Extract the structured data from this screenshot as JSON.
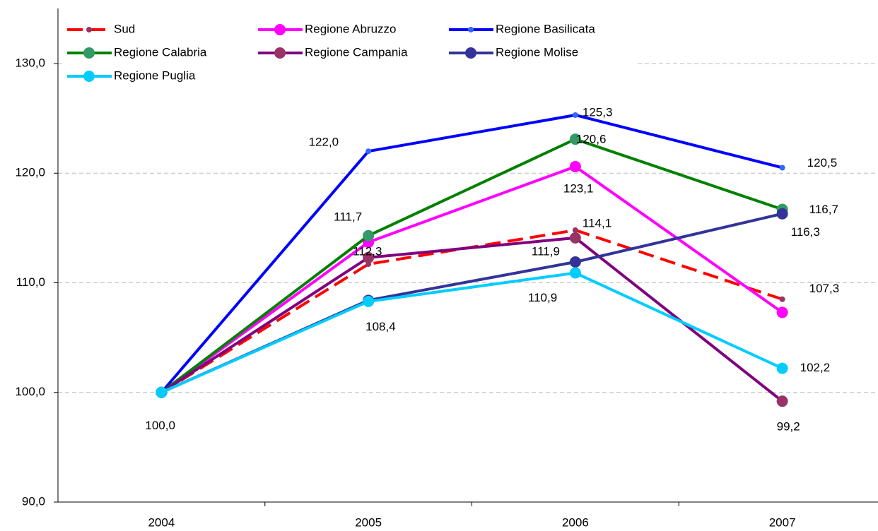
{
  "chart_data": {
    "type": "line",
    "categories": [
      "2004",
      "2005",
      "2006",
      "2007"
    ],
    "ylim": [
      90,
      130
    ],
    "yticks": [
      {
        "value": 90,
        "label": "90,0"
      },
      {
        "value": 100,
        "label": "100,0"
      },
      {
        "value": 110,
        "label": "110,0"
      },
      {
        "value": 120,
        "label": "120,0"
      },
      {
        "value": 130,
        "label": "130,0"
      }
    ],
    "grid": true,
    "series": [
      {
        "name": "Sud",
        "color": "#ff0000",
        "marker_color": "#993366",
        "dashed": true,
        "values": [
          100,
          111.7,
          114.8,
          108.5
        ],
        "value_labels": [
          null,
          "111,7",
          null,
          null
        ]
      },
      {
        "name": "Regione Abruzzo",
        "color": "#ff00ff",
        "marker_color": "#ff00ff",
        "values": [
          100,
          113.7,
          120.6,
          107.3
        ],
        "value_labels": [
          null,
          null,
          "120,6",
          "107,3"
        ]
      },
      {
        "name": "Regione Basilicata",
        "color": "#0000ff",
        "marker_color": "#3366ff",
        "values": [
          100,
          122.0,
          125.3,
          120.5
        ],
        "value_labels": [
          null,
          "122,0",
          "125,3",
          "120,5"
        ]
      },
      {
        "name": "Regione Calabria",
        "color": "#008000",
        "marker_color": "#339966",
        "values": [
          100,
          114.3,
          123.1,
          116.7
        ],
        "value_labels": [
          null,
          null,
          "123,1",
          "116,7"
        ]
      },
      {
        "name": "Regione Campania",
        "color": "#800080",
        "marker_color": "#993366",
        "values": [
          100,
          112.3,
          114.1,
          99.2
        ],
        "value_labels": [
          null,
          "112,3",
          "114,1",
          "99,2"
        ]
      },
      {
        "name": "Regione Molise",
        "color": "#333399",
        "marker_color": "#333399",
        "values": [
          100,
          108.4,
          111.9,
          116.3
        ],
        "value_labels": [
          null,
          "108,4",
          "111,9",
          "116,3"
        ]
      },
      {
        "name": "Regione Puglia",
        "color": "#00ccff",
        "marker_color": "#00ccff",
        "values": [
          100,
          108.3,
          110.9,
          102.2
        ],
        "value_labels": [
          "100,0",
          null,
          "110,9",
          "102,2"
        ]
      }
    ]
  }
}
